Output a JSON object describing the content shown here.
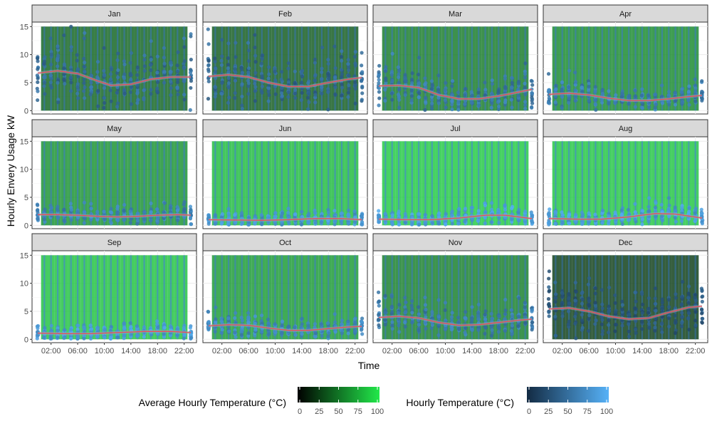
{
  "chart_data": {
    "type": "scatter",
    "facets": [
      "Jan",
      "Feb",
      "Mar",
      "Apr",
      "May",
      "Jun",
      "Jul",
      "Aug",
      "Sep",
      "Oct",
      "Nov",
      "Dec"
    ],
    "xlabel": "Time",
    "ylabel": "Hourly Envery Usage kW",
    "x_ticks": [
      "02:00",
      "06:00",
      "10:00",
      "14:00",
      "18:00",
      "22:00"
    ],
    "x_tick_hours": [
      2,
      6,
      10,
      14,
      18,
      22
    ],
    "xlim": [
      0,
      23
    ],
    "y_ticks": [
      "0",
      "5",
      "10",
      "15"
    ],
    "y_tick_values": [
      0,
      5,
      10,
      15
    ],
    "ylim": [
      0,
      15
    ],
    "grid": true,
    "smooth_color": "#e8505b",
    "avg_temp_by_month": [
      42,
      38,
      52,
      58,
      62,
      80,
      86,
      85,
      83,
      66,
      54,
      25
    ],
    "smooth_curves": {
      "Jan": [
        {
          "x": 0,
          "y": 6.7
        },
        {
          "x": 3,
          "y": 7.1
        },
        {
          "x": 6,
          "y": 6.6
        },
        {
          "x": 9,
          "y": 5.3
        },
        {
          "x": 11,
          "y": 4.5
        },
        {
          "x": 14,
          "y": 4.7
        },
        {
          "x": 17,
          "y": 5.6
        },
        {
          "x": 20,
          "y": 6.0
        },
        {
          "x": 23,
          "y": 6.0
        }
      ],
      "Feb": [
        {
          "x": 0,
          "y": 6.1
        },
        {
          "x": 3,
          "y": 6.4
        },
        {
          "x": 6,
          "y": 6.0
        },
        {
          "x": 9,
          "y": 5.0
        },
        {
          "x": 12,
          "y": 4.3
        },
        {
          "x": 15,
          "y": 4.3
        },
        {
          "x": 18,
          "y": 5.0
        },
        {
          "x": 21,
          "y": 5.6
        },
        {
          "x": 23,
          "y": 5.9
        }
      ],
      "Mar": [
        {
          "x": 0,
          "y": 4.4
        },
        {
          "x": 3,
          "y": 4.5
        },
        {
          "x": 6,
          "y": 4.1
        },
        {
          "x": 9,
          "y": 2.8
        },
        {
          "x": 12,
          "y": 2.1
        },
        {
          "x": 15,
          "y": 2.1
        },
        {
          "x": 18,
          "y": 2.6
        },
        {
          "x": 21,
          "y": 3.3
        },
        {
          "x": 23,
          "y": 3.8
        }
      ],
      "Apr": [
        {
          "x": 0,
          "y": 2.9
        },
        {
          "x": 3,
          "y": 3.1
        },
        {
          "x": 6,
          "y": 2.8
        },
        {
          "x": 9,
          "y": 2.2
        },
        {
          "x": 12,
          "y": 1.8
        },
        {
          "x": 15,
          "y": 1.8
        },
        {
          "x": 18,
          "y": 2.1
        },
        {
          "x": 21,
          "y": 2.5
        },
        {
          "x": 23,
          "y": 2.7
        }
      ],
      "May": [
        {
          "x": 0,
          "y": 1.9
        },
        {
          "x": 3,
          "y": 1.9
        },
        {
          "x": 6,
          "y": 1.8
        },
        {
          "x": 9,
          "y": 1.6
        },
        {
          "x": 12,
          "y": 1.5
        },
        {
          "x": 15,
          "y": 1.6
        },
        {
          "x": 18,
          "y": 1.8
        },
        {
          "x": 21,
          "y": 1.9
        },
        {
          "x": 23,
          "y": 1.8
        }
      ],
      "Jun": [
        {
          "x": 0,
          "y": 1.0
        },
        {
          "x": 4,
          "y": 0.95
        },
        {
          "x": 8,
          "y": 0.9
        },
        {
          "x": 12,
          "y": 1.0
        },
        {
          "x": 16,
          "y": 1.2
        },
        {
          "x": 20,
          "y": 1.2
        },
        {
          "x": 23,
          "y": 1.0
        }
      ],
      "Jul": [
        {
          "x": 0,
          "y": 1.1
        },
        {
          "x": 4,
          "y": 1.0
        },
        {
          "x": 8,
          "y": 1.0
        },
        {
          "x": 12,
          "y": 1.3
        },
        {
          "x": 16,
          "y": 1.8
        },
        {
          "x": 19,
          "y": 1.8
        },
        {
          "x": 23,
          "y": 1.2
        }
      ],
      "Aug": [
        {
          "x": 0,
          "y": 1.2
        },
        {
          "x": 4,
          "y": 1.1
        },
        {
          "x": 8,
          "y": 1.1
        },
        {
          "x": 12,
          "y": 1.5
        },
        {
          "x": 16,
          "y": 2.1
        },
        {
          "x": 19,
          "y": 2.0
        },
        {
          "x": 23,
          "y": 1.3
        }
      ],
      "Sep": [
        {
          "x": 0,
          "y": 1.1
        },
        {
          "x": 4,
          "y": 1.0
        },
        {
          "x": 8,
          "y": 1.0
        },
        {
          "x": 12,
          "y": 1.2
        },
        {
          "x": 16,
          "y": 1.4
        },
        {
          "x": 20,
          "y": 1.4
        },
        {
          "x": 23,
          "y": 1.2
        }
      ],
      "Oct": [
        {
          "x": 0,
          "y": 2.4
        },
        {
          "x": 3,
          "y": 2.6
        },
        {
          "x": 6,
          "y": 2.5
        },
        {
          "x": 9,
          "y": 2.0
        },
        {
          "x": 12,
          "y": 1.6
        },
        {
          "x": 15,
          "y": 1.6
        },
        {
          "x": 18,
          "y": 1.9
        },
        {
          "x": 21,
          "y": 2.2
        },
        {
          "x": 23,
          "y": 2.3
        }
      ],
      "Nov": [
        {
          "x": 0,
          "y": 3.9
        },
        {
          "x": 3,
          "y": 4.1
        },
        {
          "x": 6,
          "y": 3.8
        },
        {
          "x": 9,
          "y": 3.0
        },
        {
          "x": 12,
          "y": 2.5
        },
        {
          "x": 15,
          "y": 2.6
        },
        {
          "x": 18,
          "y": 3.0
        },
        {
          "x": 21,
          "y": 3.4
        },
        {
          "x": 23,
          "y": 3.6
        }
      ],
      "Dec": [
        {
          "x": 0,
          "y": 5.4
        },
        {
          "x": 3,
          "y": 5.6
        },
        {
          "x": 6,
          "y": 5.0
        },
        {
          "x": 9,
          "y": 4.1
        },
        {
          "x": 12,
          "y": 3.6
        },
        {
          "x": 15,
          "y": 3.8
        },
        {
          "x": 18,
          "y": 4.8
        },
        {
          "x": 21,
          "y": 5.7
        },
        {
          "x": 23,
          "y": 5.9
        }
      ]
    },
    "legends": [
      {
        "title": "Average Hourly Temperature (°C)",
        "ticks": [
          "0",
          "25",
          "50",
          "75",
          "100"
        ],
        "low_color": "#000000",
        "high_color": "#22e84a"
      },
      {
        "title": "Hourly Temperature (°C)",
        "ticks": [
          "0",
          "25",
          "50",
          "75",
          "100"
        ],
        "low_color": "#132b43",
        "high_color": "#56b1f7"
      }
    ],
    "legend_position": "bottom"
  }
}
